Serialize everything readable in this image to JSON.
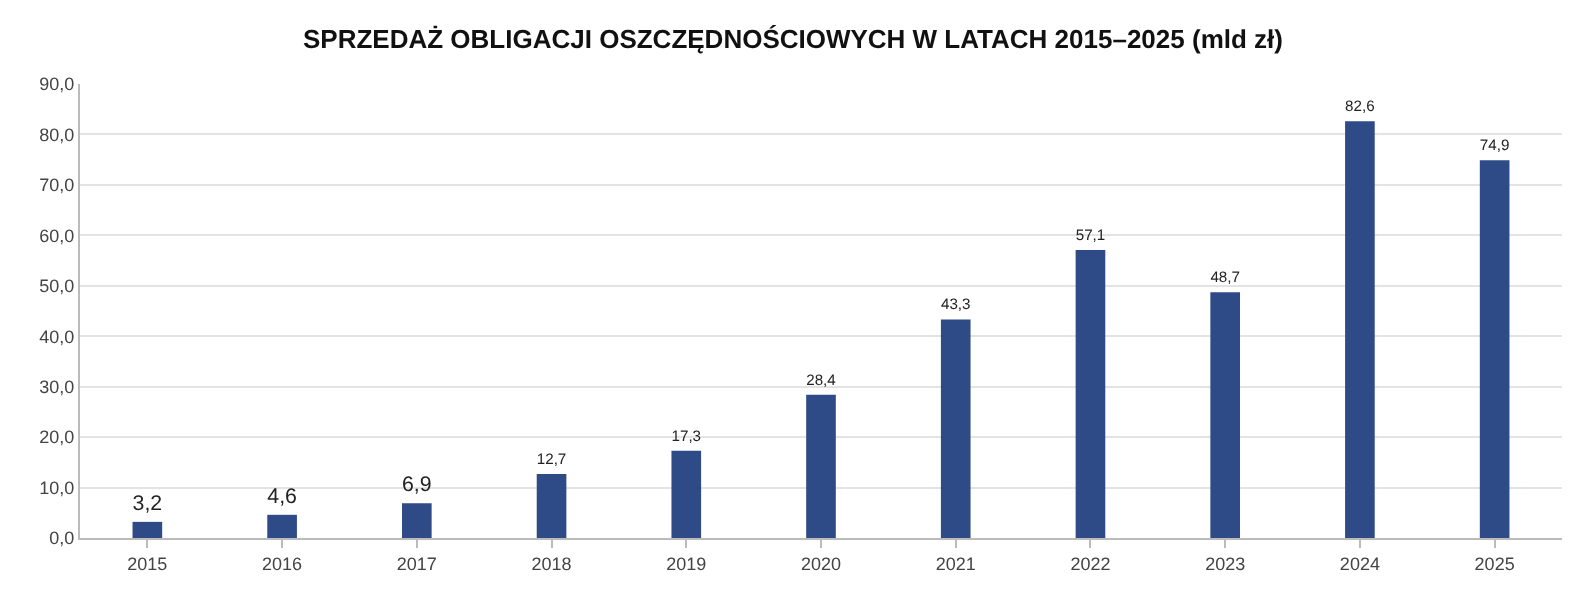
{
  "chart_data": {
    "type": "bar",
    "title": "SPRZEDAŻ OBLIGACJI OSZCZĘDNOŚCIOWYCH W LATACH 2015–2025 (mld zł)",
    "categories": [
      "2015",
      "2016",
      "2017",
      "2018",
      "2019",
      "2020",
      "2021",
      "2022",
      "2023",
      "2024",
      "2025"
    ],
    "values": [
      3.2,
      4.6,
      6.9,
      12.7,
      17.3,
      28.4,
      43.3,
      57.1,
      48.7,
      82.6,
      74.9
    ],
    "value_labels": [
      "3,2",
      "4,6",
      "6,9",
      "12,7",
      "17,3",
      "28,4",
      "43,3",
      "57,1",
      "48,7",
      "82,6",
      "74,9"
    ],
    "color": "#2e4a87",
    "ylim": [
      0,
      90
    ],
    "yticks": [
      {
        "value": 0,
        "label": "0,0"
      },
      {
        "value": 10,
        "label": "10,0"
      },
      {
        "value": 20,
        "label": "20,0"
      },
      {
        "value": 30,
        "label": "30,0"
      },
      {
        "value": 40,
        "label": "40,0"
      },
      {
        "value": 50,
        "label": "50,0"
      },
      {
        "value": 60,
        "label": "60,0"
      },
      {
        "value": 70,
        "label": "70,0"
      },
      {
        "value": 80,
        "label": "80,0"
      },
      {
        "value": 90,
        "label": "90,0"
      }
    ],
    "grid": "y"
  }
}
